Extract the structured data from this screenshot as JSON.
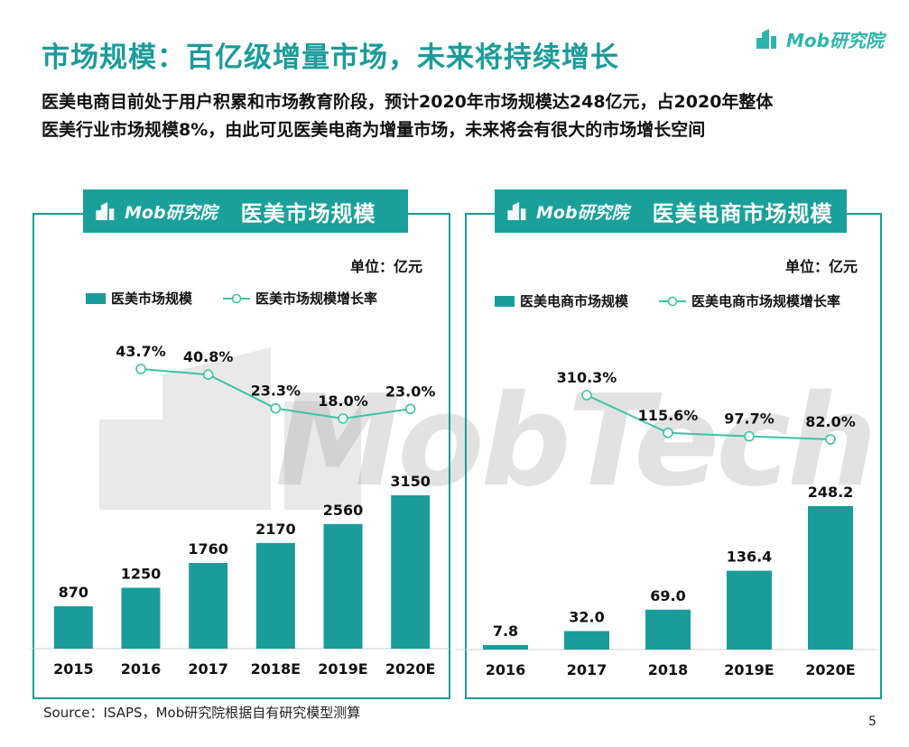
{
  "header": {
    "title": "市场规模：百亿级增量市场，未来将持续增长",
    "brand": "Mob研究院"
  },
  "summary": {
    "line1": "医美电商目前处于用户积累和市场教育阶段，预计2020年市场规模达248亿元，占2020年整体",
    "line2": "医美行业市场规模8%，由此可见医美电商为增量市场，未来将会有很大的市场增长空间"
  },
  "watermark": {
    "text": "MobTech"
  },
  "colors": {
    "accent": "#1a9c9a",
    "line": "#3cc3a6",
    "header": "#1aa09b"
  },
  "chart_data": [
    {
      "type": "bar",
      "panel_logo": "Mob研究院",
      "title": "医美市场规模",
      "unit": "单位：亿元",
      "categories": [
        "2015",
        "2016",
        "2017",
        "2018E",
        "2019E",
        "2020E"
      ],
      "series": [
        {
          "name": "医美市场规模",
          "values": [
            870,
            1250,
            1760,
            2170,
            2560,
            3150
          ],
          "labels": [
            "870",
            "1250",
            "1760",
            "2170",
            "2560",
            "3150"
          ]
        }
      ],
      "line_series": {
        "name": "医美市场规模增长率",
        "categories": [
          "2016",
          "2017",
          "2018E",
          "2019E",
          "2020E"
        ],
        "values": [
          43.7,
          40.8,
          23.3,
          18.0,
          23.0
        ],
        "labels": [
          "43.7%",
          "40.8%",
          "23.3%",
          "18.0%",
          "23.0%"
        ]
      },
      "ylim": [
        0,
        3150
      ],
      "line_ylim": [
        18.0,
        43.7
      ]
    },
    {
      "type": "bar",
      "panel_logo": "Mob研究院",
      "title": "医美电商市场规模",
      "unit": "单位：亿元",
      "categories": [
        "2016",
        "2017",
        "2018",
        "2019E",
        "2020E"
      ],
      "series": [
        {
          "name": "医美电商市场规模",
          "values": [
            7.8,
            32.0,
            69.0,
            136.4,
            248.2
          ],
          "labels": [
            "7.8",
            "32.0",
            "69.0",
            "136.4",
            "248.2"
          ]
        }
      ],
      "line_series": {
        "name": "医美电商市场规模增长率",
        "categories": [
          "2017",
          "2018",
          "2019E",
          "2020E"
        ],
        "values": [
          310.3,
          115.6,
          97.7,
          82.0
        ],
        "labels": [
          "310.3%",
          "115.6%",
          "97.7%",
          "82.0%"
        ]
      },
      "ylim": [
        0,
        248.2
      ],
      "line_ylim": [
        82.0,
        310.3
      ]
    }
  ],
  "footer": {
    "source": "Source：ISAPS，Mob研究院根据自有研究模型测算",
    "page": "5"
  }
}
